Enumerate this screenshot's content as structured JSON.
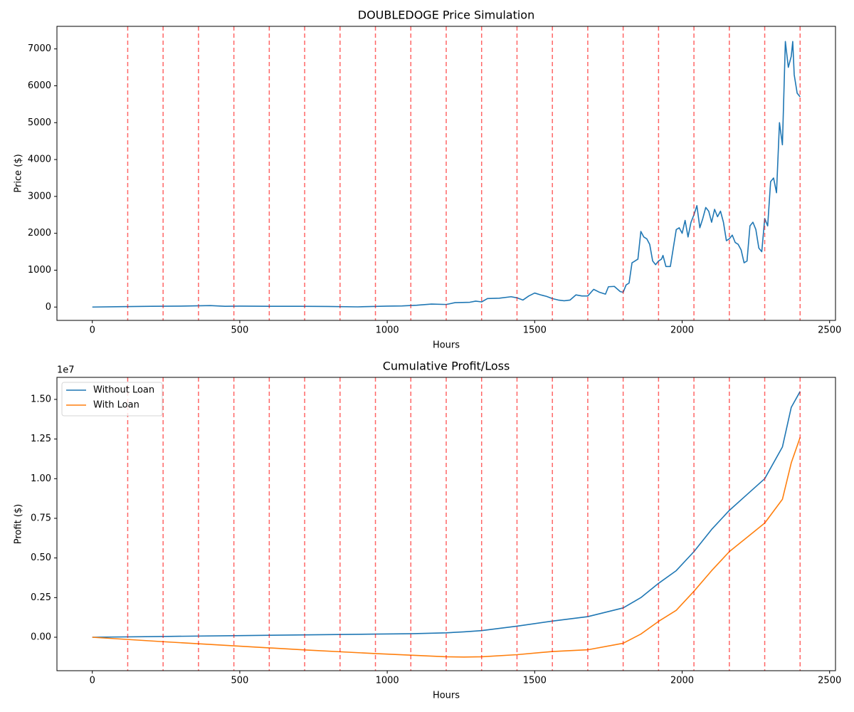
{
  "chart_data": [
    {
      "type": "line",
      "title": "DOUBLEDOGE Price Simulation",
      "xlabel": "Hours",
      "ylabel": "Price ($)",
      "xlim": [
        -120,
        2520
      ],
      "xticks": [
        0,
        500,
        1000,
        1500,
        2000,
        2500
      ],
      "ylim": [
        -362,
        7612
      ],
      "yticks": [
        0,
        1000,
        2000,
        3000,
        4000,
        5000,
        6000,
        7000
      ],
      "vlines": [
        120,
        240,
        360,
        480,
        600,
        720,
        840,
        960,
        1080,
        1200,
        1320,
        1440,
        1560,
        1680,
        1800,
        1920,
        2040,
        2160,
        2280,
        2400
      ],
      "vline_color": "#ff0000",
      "color": "#1f77b4",
      "x": [
        0,
        100,
        200,
        300,
        400,
        450,
        500,
        600,
        700,
        800,
        900,
        1000,
        1050,
        1100,
        1150,
        1200,
        1230,
        1280,
        1300,
        1320,
        1340,
        1380,
        1420,
        1440,
        1460,
        1480,
        1500,
        1520,
        1540,
        1560,
        1580,
        1600,
        1620,
        1640,
        1660,
        1680,
        1700,
        1720,
        1740,
        1750,
        1770,
        1790,
        1800,
        1810,
        1820,
        1830,
        1840,
        1850,
        1860,
        1870,
        1880,
        1890,
        1900,
        1910,
        1920,
        1930,
        1935,
        1945,
        1960,
        1970,
        1980,
        1990,
        2000,
        2010,
        2020,
        2030,
        2040,
        2050,
        2060,
        2070,
        2080,
        2090,
        2100,
        2110,
        2120,
        2130,
        2140,
        2150,
        2160,
        2170,
        2180,
        2190,
        2200,
        2210,
        2220,
        2230,
        2240,
        2250,
        2260,
        2270,
        2280,
        2290,
        2300,
        2310,
        2320,
        2330,
        2340,
        2350,
        2360,
        2370,
        2375,
        2380,
        2390,
        2400
      ],
      "values": [
        0,
        10,
        20,
        25,
        40,
        20,
        25,
        20,
        20,
        15,
        5,
        25,
        30,
        50,
        80,
        70,
        120,
        130,
        160,
        140,
        230,
        240,
        280,
        250,
        190,
        300,
        380,
        330,
        290,
        230,
        190,
        170,
        190,
        330,
        300,
        300,
        480,
        400,
        350,
        550,
        560,
        420,
        400,
        600,
        650,
        1200,
        1250,
        1300,
        2050,
        1900,
        1850,
        1700,
        1250,
        1150,
        1250,
        1300,
        1400,
        1100,
        1100,
        1600,
        2100,
        2150,
        2000,
        2350,
        1900,
        2300,
        2500,
        2750,
        2150,
        2400,
        2700,
        2600,
        2300,
        2650,
        2450,
        2600,
        2300,
        1800,
        1850,
        1950,
        1750,
        1700,
        1550,
        1200,
        1250,
        2200,
        2300,
        2100,
        1600,
        1500,
        2400,
        2200,
        3400,
        3500,
        3100,
        5000,
        4400,
        7200,
        6500,
        6800,
        7200,
        6300,
        5800,
        5700
      ]
    },
    {
      "type": "line",
      "title": "Cumulative Profit/Loss",
      "xlabel": "Hours",
      "ylabel": "Profit ($)",
      "y_offset_label": "1e7",
      "xlim": [
        -120,
        2520
      ],
      "xticks": [
        0,
        500,
        1000,
        1500,
        2000,
        2500
      ],
      "ylim": [
        -2110000,
        16390000
      ],
      "yticks": [
        {
          "value": 0,
          "label": "0.00"
        },
        {
          "value": 2500000,
          "label": "0.25"
        },
        {
          "value": 5000000,
          "label": "0.50"
        },
        {
          "value": 7500000,
          "label": "0.75"
        },
        {
          "value": 10000000,
          "label": "1.00"
        },
        {
          "value": 12500000,
          "label": "1.25"
        },
        {
          "value": 15000000,
          "label": "1.50"
        }
      ],
      "vlines": [
        120,
        240,
        360,
        480,
        600,
        720,
        840,
        960,
        1080,
        1200,
        1320,
        1440,
        1560,
        1680,
        1800,
        1920,
        2040,
        2160,
        2280,
        2400
      ],
      "vline_color": "#ff0000",
      "legend": "upper left",
      "x": [
        0,
        240,
        480,
        720,
        960,
        1080,
        1200,
        1260,
        1320,
        1440,
        1560,
        1680,
        1800,
        1860,
        1920,
        1980,
        2040,
        2100,
        2160,
        2220,
        2280,
        2340,
        2370,
        2400
      ],
      "series": [
        {
          "name": "Without Loan",
          "color": "#1f77b4",
          "values": [
            0,
            50000,
            100000,
            150000,
            200000,
            220000,
            280000,
            340000,
            420000,
            700000,
            1020000,
            1300000,
            1850000,
            2500000,
            3400000,
            4200000,
            5400000,
            6800000,
            8000000,
            9000000,
            10000000,
            12000000,
            14500000,
            15500000
          ]
        },
        {
          "name": "With Loan",
          "color": "#ff7f0e",
          "values": [
            0,
            -280000,
            -540000,
            -800000,
            -1030000,
            -1130000,
            -1230000,
            -1250000,
            -1230000,
            -1100000,
            -900000,
            -790000,
            -380000,
            200000,
            1000000,
            1700000,
            2900000,
            4200000,
            5400000,
            6300000,
            7200000,
            8700000,
            11000000,
            12600000
          ]
        }
      ]
    }
  ]
}
